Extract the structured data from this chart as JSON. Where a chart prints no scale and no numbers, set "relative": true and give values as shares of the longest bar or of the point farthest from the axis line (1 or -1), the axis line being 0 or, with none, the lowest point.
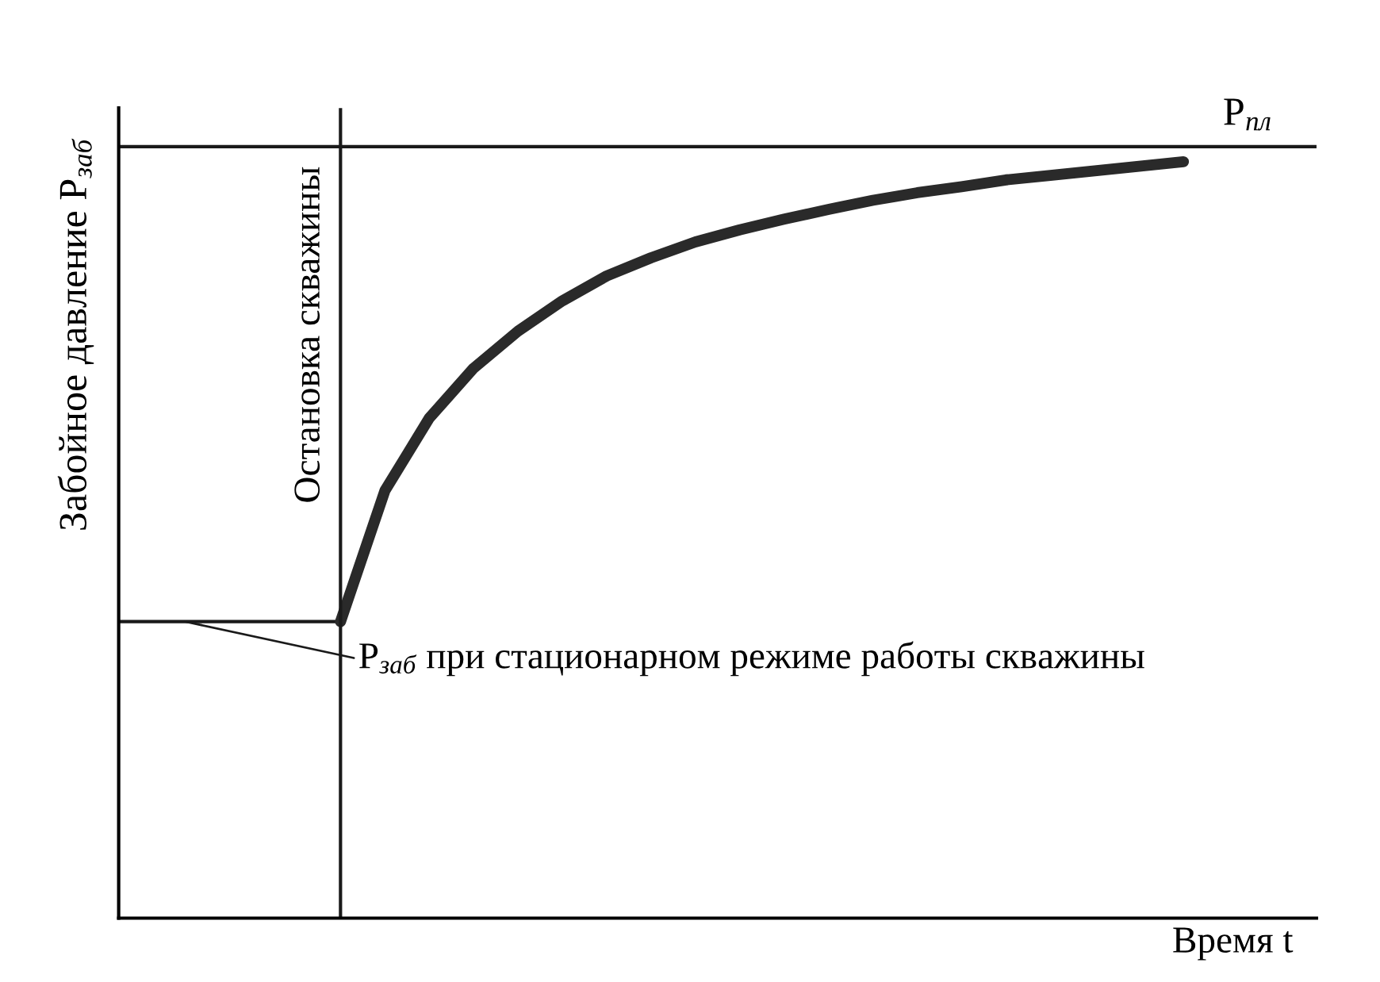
{
  "chart_data": {
    "type": "line",
    "relative": true,
    "ylabel": "Забойное давление P$_{заб}$",
    "xlabel": "Время t",
    "marker": "none",
    "line_style": "solid",
    "categories": [
      null,
      null,
      null,
      null,
      null,
      null,
      null,
      null,
      null,
      null,
      null,
      null,
      null,
      null,
      null,
      null,
      null,
      null,
      null,
      null,
      null,
      null,
      null,
      null,
      null,
      null,
      null,
      null
    ],
    "series": [
      {
        "color": "#1a1a1a",
        "values": [
          0.392,
          0.392,
          0.392,
          0.392,
          0.392,
          0.392,
          null,
          null,
          null,
          null,
          null,
          null,
          null,
          null,
          null,
          null,
          null,
          null,
          null,
          null,
          null,
          null,
          null,
          null,
          null,
          null,
          null,
          null
        ]
      },
      {
        "color": "#2a2a2a",
        "values": [
          null,
          null,
          null,
          null,
          null,
          0.392,
          0.565,
          0.661,
          0.727,
          0.776,
          0.816,
          0.849,
          0.873,
          0.894,
          0.91,
          0.924,
          0.937,
          0.949,
          0.959,
          0.967,
          0.976,
          0.982,
          0.988,
          0.994,
          1.0,
          null,
          null,
          null
        ]
      }
    ],
    "ref_lines": [
      {
        "axis": "y",
        "value": 1.02,
        "label": "P$_{пл}$",
        "color": "#1a1a1a",
        "line_style": "solid"
      }
    ],
    "annotations": [
      "Остановка скважины",
      "P$_{заб}$ при стационарном режиме работы скважины"
    ]
  }
}
